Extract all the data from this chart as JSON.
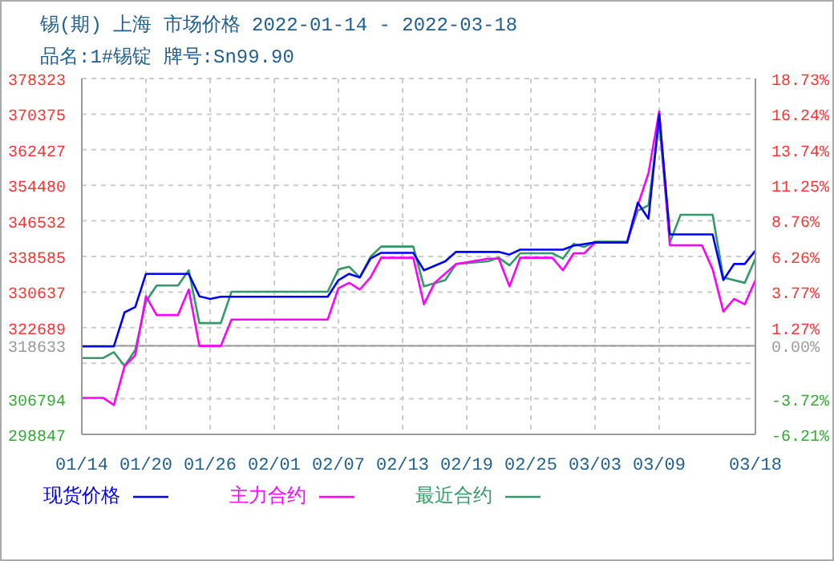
{
  "chart_data": {
    "type": "line",
    "title": "锡(期) 上海 市场价格 2022-01-14 - 2022-03-18",
    "subtitle": "品名:1#锡锭 牌号:Sn99.90",
    "series": [
      {
        "name": "现货价格",
        "color": "#0000ff",
        "x": [
          "2022-01-14",
          "2022-01-17",
          "2022-01-18",
          "2022-01-19",
          "2022-01-20",
          "2022-01-24",
          "2022-01-25",
          "2022-01-26",
          "2022-01-27",
          "2022-02-06",
          "2022-02-07",
          "2022-02-08",
          "2022-02-09",
          "2022-02-10",
          "2022-02-11",
          "2022-02-14",
          "2022-02-15",
          "2022-02-17",
          "2022-02-18",
          "2022-02-22",
          "2022-02-23",
          "2022-02-24",
          "2022-02-28",
          "2022-03-01",
          "2022-03-03",
          "2022-03-06",
          "2022-03-07",
          "2022-03-08",
          "2022-03-09",
          "2022-03-10",
          "2022-03-14",
          "2022-03-15",
          "2022-03-16",
          "2022-03-17",
          "2022-03-18"
        ],
        "values": [
          318500,
          318500,
          326100,
          327300,
          334700,
          334700,
          329700,
          329100,
          329600,
          329600,
          333300,
          334700,
          333900,
          338100,
          339400,
          339400,
          335500,
          337500,
          339600,
          339600,
          339000,
          340100,
          340100,
          341000,
          341700,
          341700,
          350600,
          347000,
          370400,
          343500,
          343500,
          333300,
          336900,
          336900,
          339900
        ]
      },
      {
        "name": "主力合约",
        "color": "#ff00ff",
        "x": [
          "2022-01-14",
          "2022-01-16",
          "2022-01-17",
          "2022-01-18",
          "2022-01-19",
          "2022-01-20",
          "2022-01-21",
          "2022-01-23",
          "2022-01-24",
          "2022-01-25",
          "2022-01-27",
          "2022-01-28",
          "2022-02-06",
          "2022-02-07",
          "2022-02-08",
          "2022-02-09",
          "2022-02-10",
          "2022-02-11",
          "2022-02-14",
          "2022-02-15",
          "2022-02-16",
          "2022-02-18",
          "2022-02-21",
          "2022-02-22",
          "2022-02-23",
          "2022-02-24",
          "2022-02-27",
          "2022-02-28",
          "2022-03-01",
          "2022-03-02",
          "2022-03-03",
          "2022-03-06",
          "2022-03-07",
          "2022-03-08",
          "2022-03-09",
          "2022-03-10",
          "2022-03-13",
          "2022-03-14",
          "2022-03-15",
          "2022-03-16",
          "2022-03-17",
          "2022-03-18"
        ],
        "values": [
          307000,
          307000,
          305400,
          314100,
          316500,
          329700,
          325500,
          325500,
          331200,
          318600,
          318600,
          324500,
          324500,
          331500,
          332700,
          331200,
          333900,
          338300,
          338300,
          327900,
          332700,
          336900,
          338100,
          338100,
          331900,
          338300,
          338300,
          335500,
          339300,
          339300,
          341700,
          341700,
          350000,
          357200,
          371000,
          341100,
          341100,
          335700,
          326300,
          329100,
          327900,
          333300
        ]
      },
      {
        "name": "最近合约",
        "color": "#339966",
        "x": [
          "2022-01-14",
          "2022-01-16",
          "2022-01-17",
          "2022-01-18",
          "2022-01-19",
          "2022-01-20",
          "2022-01-21",
          "2022-01-23",
          "2022-01-24",
          "2022-01-25",
          "2022-01-27",
          "2022-01-28",
          "2022-02-06",
          "2022-02-07",
          "2022-02-08",
          "2022-02-09",
          "2022-02-10",
          "2022-02-11",
          "2022-02-14",
          "2022-02-15",
          "2022-02-17",
          "2022-02-18",
          "2022-02-21",
          "2022-02-22",
          "2022-02-23",
          "2022-02-24",
          "2022-02-27",
          "2022-02-28",
          "2022-03-01",
          "2022-03-02",
          "2022-03-03",
          "2022-03-06",
          "2022-03-07",
          "2022-03-08",
          "2022-03-09",
          "2022-03-10",
          "2022-03-11",
          "2022-03-14",
          "2022-03-15",
          "2022-03-17",
          "2022-03-18"
        ],
        "values": [
          315900,
          315900,
          317200,
          314100,
          317700,
          328500,
          332100,
          332100,
          335500,
          323700,
          323700,
          330700,
          330700,
          335700,
          336300,
          333900,
          338500,
          340800,
          340800,
          331900,
          333300,
          336900,
          337500,
          338300,
          336600,
          339300,
          339300,
          338100,
          341400,
          340700,
          341900,
          341900,
          348800,
          350000,
          368600,
          341700,
          347900,
          347900,
          333900,
          332700,
          338100
        ]
      }
    ],
    "xlim": [
      "2022-01-14",
      "2022-03-18"
    ],
    "xticks": [
      {
        "value": "2022-01-14",
        "label": "01/14"
      },
      {
        "value": "2022-01-20",
        "label": "01/20"
      },
      {
        "value": "2022-01-26",
        "label": "01/26"
      },
      {
        "value": "2022-02-01",
        "label": "02/01"
      },
      {
        "value": "2022-02-07",
        "label": "02/07"
      },
      {
        "value": "2022-02-13",
        "label": "02/13"
      },
      {
        "value": "2022-02-19",
        "label": "02/19"
      },
      {
        "value": "2022-02-25",
        "label": "02/25"
      },
      {
        "value": "2022-03-03",
        "label": "03/03"
      },
      {
        "value": "2022-03-09",
        "label": "03/09"
      },
      {
        "value": "2022-03-18",
        "label": "03/18"
      }
    ],
    "ylim": [
      298847,
      378323
    ],
    "yticks": [
      298847,
      306794,
      {
        "value": 314742,
        "label": null
      },
      318633,
      322689,
      330637,
      338585,
      346532,
      354480,
      362427,
      370375,
      378323
    ],
    "y2lim": [
      -6.21,
      18.73
    ],
    "y2ticks": [
      {
        "value": -6.21,
        "label": "-6.21%"
      },
      {
        "value": -3.72,
        "label": "-3.72%"
      },
      {
        "value": 0,
        "label": "0.00%"
      },
      {
        "value": 1.27,
        "label": "1.27%"
      },
      {
        "value": 3.77,
        "label": "3.77%"
      },
      {
        "value": 6.26,
        "label": "6.26%"
      },
      {
        "value": 8.76,
        "label": "8.76%"
      },
      {
        "value": 11.25,
        "label": "11.25%"
      },
      {
        "value": 13.74,
        "label": "13.74%"
      },
      {
        "value": 16.24,
        "label": "16.24%"
      },
      {
        "value": 18.73,
        "label": "18.73%"
      }
    ],
    "ref_lines": [
      {
        "axis": "y",
        "value": 318633,
        "color": "#999999"
      }
    ],
    "grid": true,
    "legend": "bottom",
    "line_style": "solid",
    "marker": "none"
  }
}
